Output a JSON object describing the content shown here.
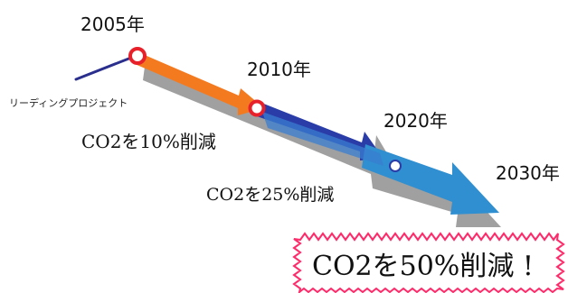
{
  "years": {
    "y2005": "2005年",
    "y2010": "2010年",
    "y2020": "2020年",
    "y2030": "2030年"
  },
  "project_label": "リーディングプロジェクト",
  "targets": {
    "t10": "CO2を10%削減",
    "t25": "CO2を25%削減",
    "t50": "CO2を50%削減 !"
  },
  "colors": {
    "navy": "#2a2f8e",
    "orange": "#f47a20",
    "blue": "#2f8fd0",
    "red": "#e8202a",
    "gray": "#9a9a9a",
    "burst": "#ff2a6a"
  }
}
